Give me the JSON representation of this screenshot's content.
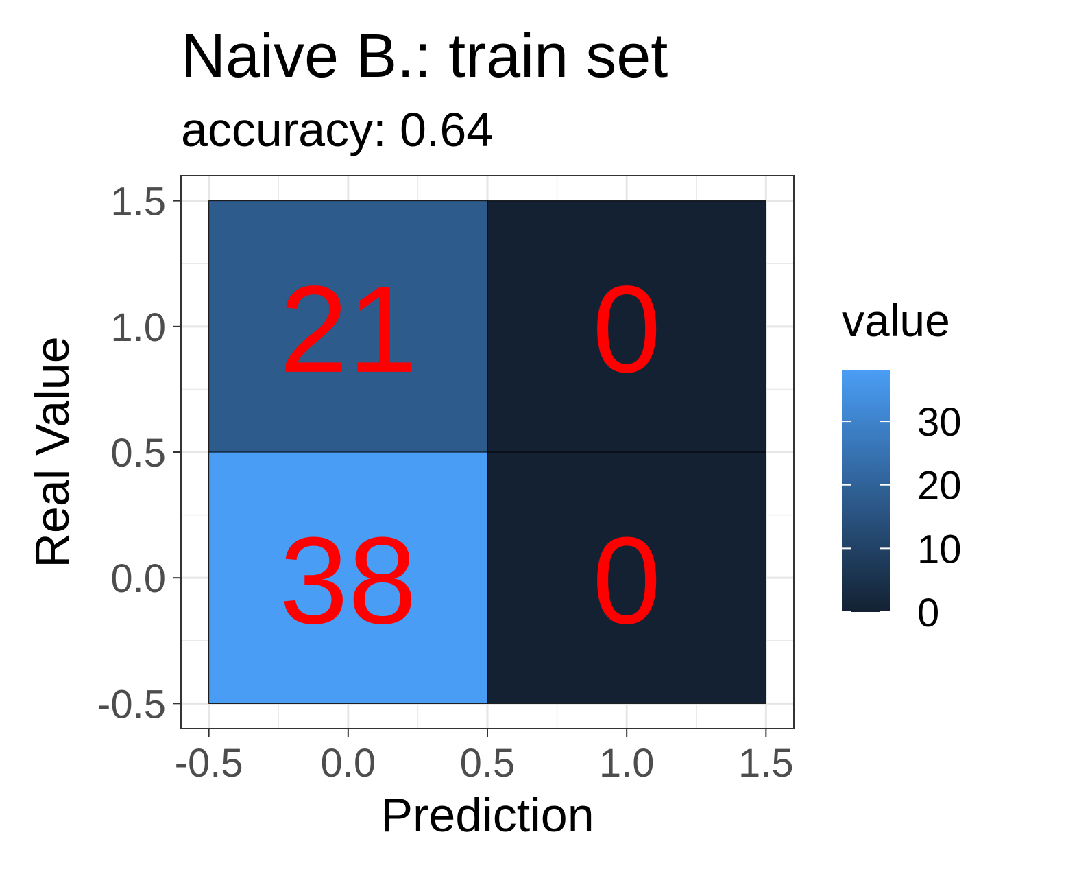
{
  "chart_data": {
    "type": "heatmap",
    "title": "Naive B.: train set",
    "subtitle": "accuracy: 0.64",
    "xlabel": "Prediction",
    "ylabel": "Real Value",
    "xlim": [
      -0.6,
      1.6
    ],
    "ylim": [
      -0.6,
      1.6
    ],
    "x_ticks": [
      -0.5,
      0.0,
      0.5,
      1.0,
      1.5
    ],
    "y_ticks": [
      -0.5,
      0.0,
      0.5,
      1.0,
      1.5
    ],
    "x_tick_labels": [
      "-0.5",
      "0.0",
      "0.5",
      "1.0",
      "1.5"
    ],
    "y_tick_labels": [
      "-0.5",
      "0.0",
      "0.5",
      "1.0",
      "1.5"
    ],
    "grid": true,
    "cells": [
      {
        "x": 0,
        "y": 1,
        "value": 21,
        "label": "21",
        "color": "#2c5b8c"
      },
      {
        "x": 1,
        "y": 1,
        "value": 0,
        "label": "0",
        "color": "#132132"
      },
      {
        "x": 0,
        "y": 0,
        "value": 38,
        "label": "38",
        "color": "#4a9df5"
      },
      {
        "x": 1,
        "y": 0,
        "value": 0,
        "label": "0",
        "color": "#132132"
      }
    ],
    "label_color": "#ff0000",
    "legend": {
      "title": "value",
      "position": "right",
      "range": [
        0,
        38
      ],
      "ticks": [
        0,
        10,
        20,
        30
      ],
      "tick_labels": [
        "0",
        "10",
        "20",
        "30"
      ],
      "color_low": "#132132",
      "color_high": "#4a9df5"
    }
  }
}
